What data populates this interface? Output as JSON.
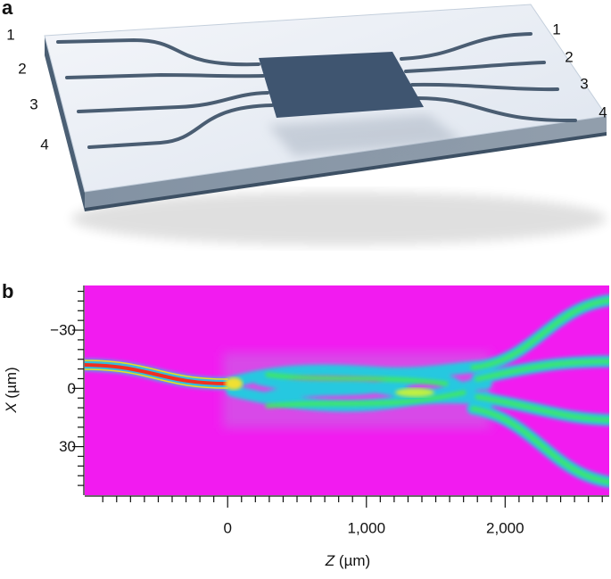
{
  "panel_a": {
    "label": "a",
    "left_ports": [
      "1",
      "2",
      "3",
      "4"
    ],
    "right_ports": [
      "1",
      "2",
      "3",
      "4"
    ]
  },
  "chart_data": {
    "type": "heatmap",
    "panel_label": "b",
    "x_label": {
      "symbol": "Z",
      "unit": "(µm)"
    },
    "y_label": {
      "symbol": "X",
      "unit": "(µm)"
    },
    "xlim": [
      -1030,
      2750
    ],
    "xticks": [
      0,
      {
        "value": 1000,
        "label": "1,000"
      },
      {
        "value": 2000,
        "label": "2,000"
      }
    ],
    "xticks_minor": [
      -900,
      -800,
      -700,
      -600,
      -500,
      -400,
      -300,
      -200,
      -100,
      100,
      200,
      300,
      400,
      500,
      600,
      700,
      800,
      900,
      1100,
      1200,
      1300,
      1400,
      1500,
      1600,
      1700,
      1800,
      1900,
      2100,
      2200,
      2300,
      2400,
      2500,
      2600,
      2700
    ],
    "ylim": [
      -53,
      55
    ],
    "yticks": [
      {
        "value": -30,
        "label": "−30"
      },
      0,
      30
    ],
    "yticks_minor": [
      -50,
      -45,
      -40,
      -35,
      -25,
      -20,
      -15,
      -10,
      -5,
      5,
      10,
      15,
      20,
      25,
      35,
      40,
      45,
      50
    ]
  }
}
